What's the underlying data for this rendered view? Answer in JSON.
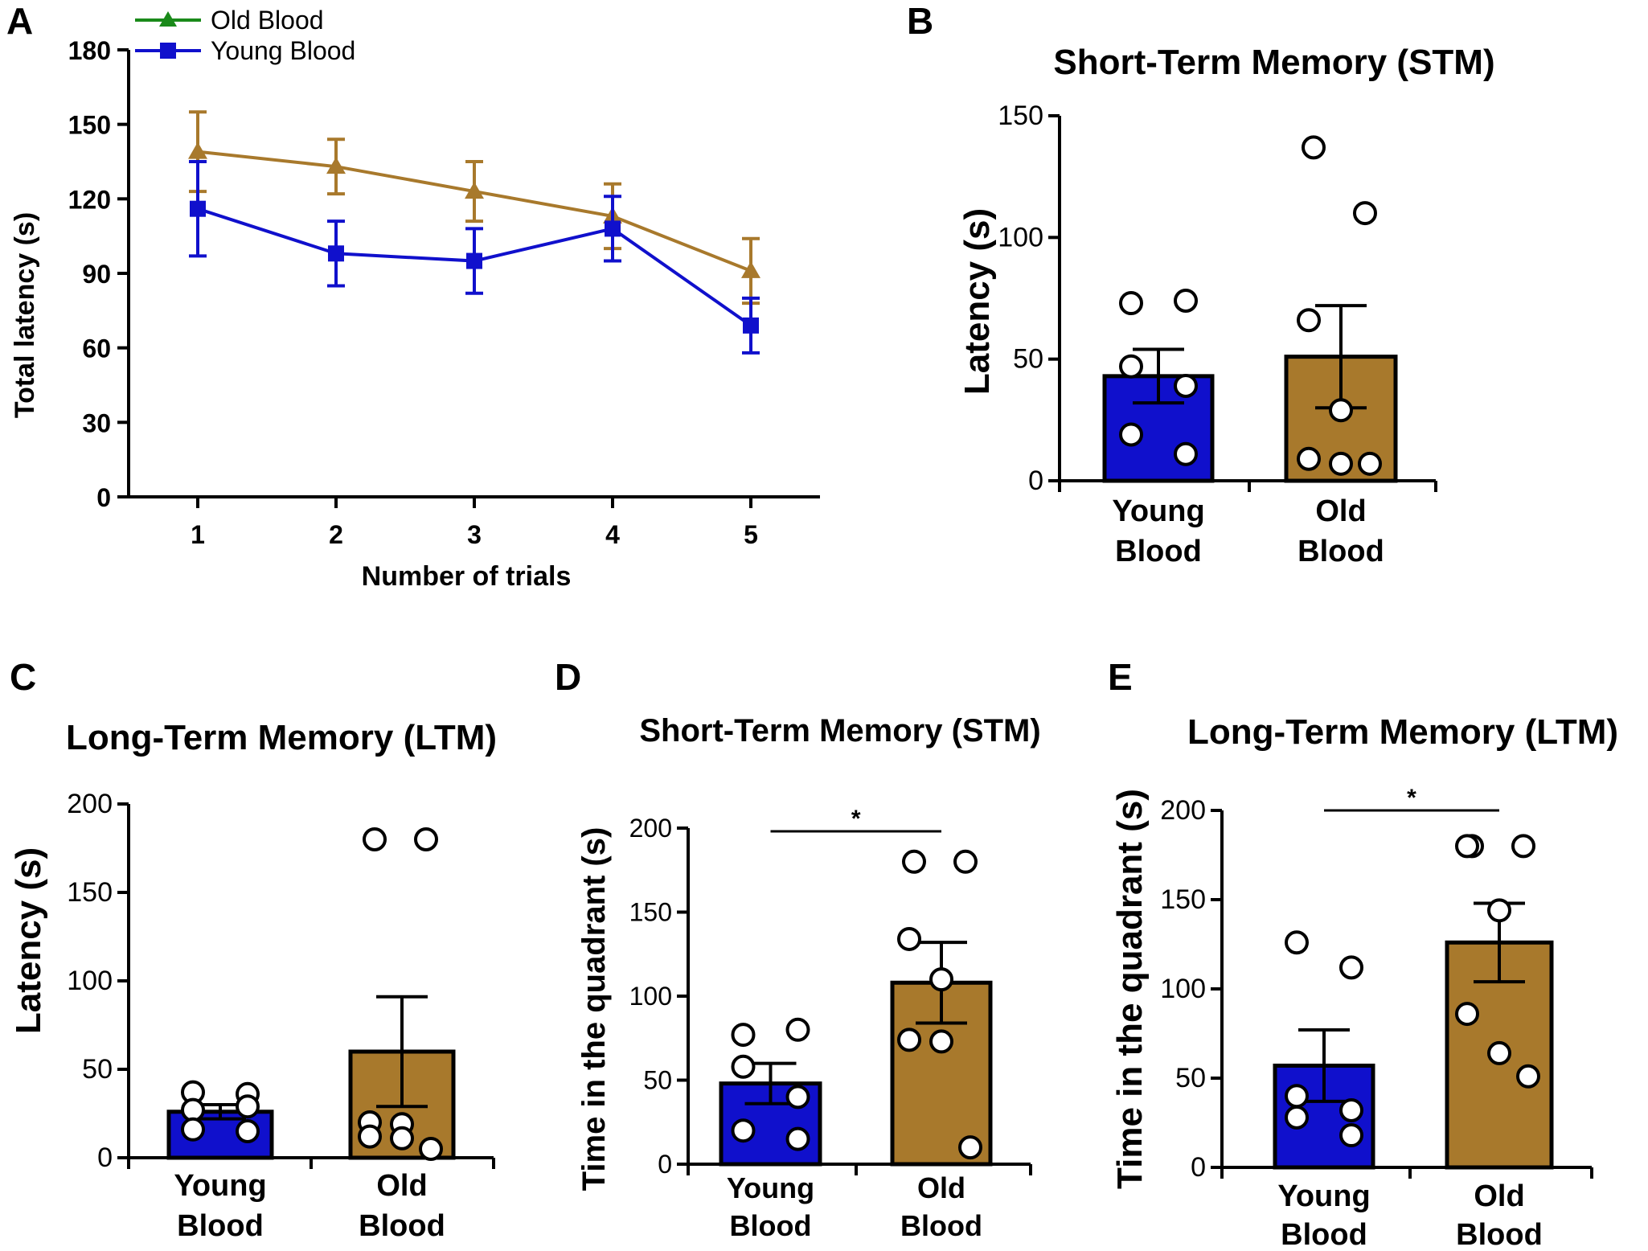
{
  "colors": {
    "young": "#1010cc",
    "old": "#a8792c",
    "green": "#1a8a1a",
    "black": "#000000",
    "marker_fill": "#ffffff"
  },
  "chart_data": [
    {
      "panel": "A",
      "type": "line",
      "title": "",
      "xlabel": "Number of trials",
      "ylabel": "Total latency (s)",
      "x": [
        1,
        2,
        3,
        4,
        5
      ],
      "xlim": [
        0.5,
        5.5
      ],
      "ylim": [
        0,
        180
      ],
      "yticks": [
        0,
        30,
        60,
        90,
        120,
        150,
        180
      ],
      "xticks": [
        1,
        2,
        3,
        4,
        5
      ],
      "legend_position": "top-left",
      "series": [
        {
          "key": "old",
          "name": "Old Blood",
          "marker": "triangle",
          "values": [
            139,
            133,
            123,
            113,
            91
          ],
          "errors": [
            16,
            11,
            12,
            13,
            13
          ]
        },
        {
          "key": "young",
          "name": "Young Blood",
          "marker": "square",
          "values": [
            116,
            98,
            95,
            108,
            69
          ],
          "errors": [
            19,
            13,
            13,
            13,
            11
          ]
        }
      ]
    },
    {
      "panel": "B",
      "type": "bar",
      "title": "Short-Term Memory (STM)",
      "ylabel": "Latency (s)",
      "ylim": [
        0,
        150
      ],
      "yticks": [
        0,
        50,
        100,
        150
      ],
      "categories": [
        [
          "Young",
          "Blood"
        ],
        [
          "Old",
          "Blood"
        ]
      ],
      "values": [
        43,
        51
      ],
      "errors": [
        11,
        21
      ],
      "points": [
        [
          73,
          74,
          47,
          39,
          19,
          11
        ],
        [
          137,
          110,
          66,
          29,
          9,
          7,
          7
        ]
      ],
      "significance": null
    },
    {
      "panel": "C",
      "type": "bar",
      "title": "Long-Term Memory (LTM)",
      "ylabel": "Latency (s)",
      "ylim": [
        0,
        200
      ],
      "yticks": [
        0,
        50,
        100,
        150,
        200
      ],
      "categories": [
        [
          "Young",
          "Blood"
        ],
        [
          "Old",
          "Blood"
        ]
      ],
      "values": [
        26,
        60
      ],
      "errors": [
        4,
        31
      ],
      "points": [
        [
          37,
          36,
          27,
          29,
          16,
          15
        ],
        [
          180,
          180,
          20,
          19,
          12,
          11,
          5
        ]
      ],
      "significance": null
    },
    {
      "panel": "D",
      "type": "bar",
      "title": "Short-Term Memory (STM)",
      "ylabel": "Time in the quadrant (s)",
      "ylim": [
        0,
        200
      ],
      "yticks": [
        0,
        50,
        100,
        150,
        200
      ],
      "categories": [
        [
          "Young",
          "Blood"
        ],
        [
          "Old",
          "Blood"
        ]
      ],
      "values": [
        48,
        108
      ],
      "errors": [
        12,
        24
      ],
      "points": [
        [
          77,
          80,
          58,
          40,
          20,
          15
        ],
        [
          180,
          180,
          134,
          110,
          74,
          73,
          10
        ]
      ],
      "significance": "*"
    },
    {
      "panel": "E",
      "type": "bar",
      "title": "Long-Term Memory (LTM)",
      "ylabel": "Time in the quadrant (s)",
      "ylim": [
        0,
        200
      ],
      "yticks": [
        0,
        50,
        100,
        150,
        200
      ],
      "categories": [
        [
          "Young",
          "Blood"
        ],
        [
          "Old",
          "Blood"
        ]
      ],
      "values": [
        57,
        126
      ],
      "errors": [
        20,
        22
      ],
      "points": [
        [
          126,
          112,
          40,
          32,
          28,
          18
        ],
        [
          180,
          180,
          180,
          144,
          86,
          64,
          51
        ]
      ],
      "significance": "*"
    }
  ]
}
